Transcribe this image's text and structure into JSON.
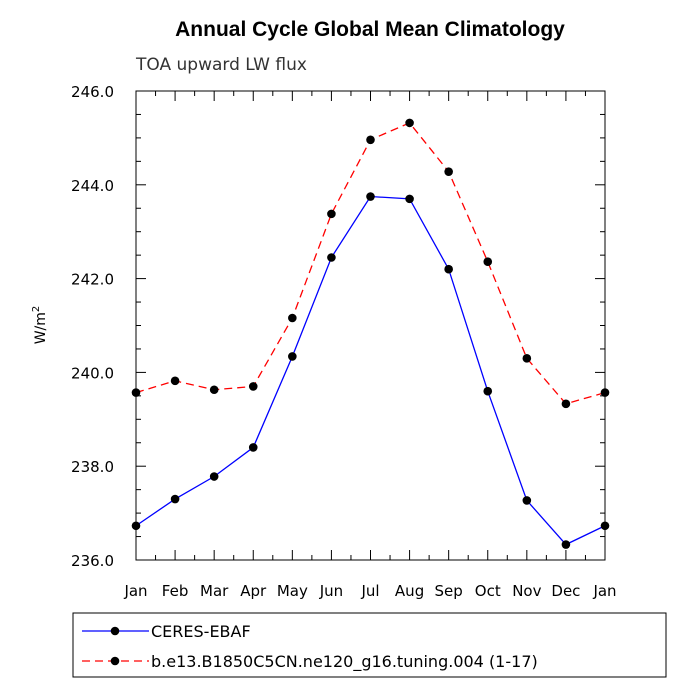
{
  "chart_data": {
    "type": "line",
    "title": "Annual Cycle Global Mean Climatology",
    "subtitle": "TOA upward LW flux",
    "xlabel": "",
    "ylabel": "W/m",
    "ylabel_sup": "2",
    "categories": [
      "Jan",
      "Feb",
      "Mar",
      "Apr",
      "May",
      "Jun",
      "Jul",
      "Aug",
      "Sep",
      "Oct",
      "Nov",
      "Dec",
      "Jan"
    ],
    "ylim": [
      236.0,
      246.0
    ],
    "yticks": [
      "236.0",
      "238.0",
      "240.0",
      "242.0",
      "244.0",
      "246.0"
    ],
    "series": [
      {
        "name": "CERES-EBAF",
        "color": "#0000ff",
        "dashed": false,
        "values": [
          236.73,
          237.3,
          237.78,
          238.4,
          240.34,
          242.45,
          243.75,
          243.7,
          242.2,
          239.6,
          237.27,
          236.33,
          236.73
        ]
      },
      {
        "name": "b.e13.B1850C5CN.ne120_g16.tuning.004 (1-17)",
        "color": "#ff0000",
        "dashed": true,
        "values": [
          239.57,
          239.82,
          239.63,
          239.7,
          241.16,
          243.38,
          244.96,
          245.32,
          244.28,
          242.36,
          240.3,
          239.33,
          239.57
        ]
      }
    ]
  }
}
